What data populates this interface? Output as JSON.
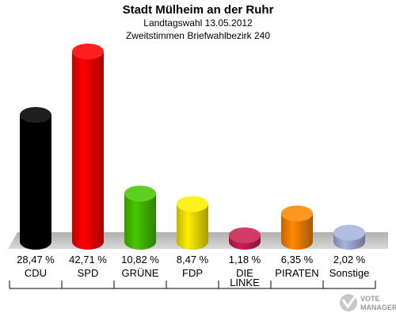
{
  "chart_data": {
    "type": "bar",
    "title": "Stadt Mülheim an der Ruhr",
    "subtitle_lines": [
      "Landtagswahl 13.05.2012",
      "Zweitstimmen Briefwahlbezirk 240"
    ],
    "categories": [
      "CDU",
      "SPD",
      "GRÜNE",
      "FDP",
      "DIE LINKE",
      "PIRATEN",
      "Sonstige"
    ],
    "category_label_lines": [
      [
        "CDU"
      ],
      [
        "SPD"
      ],
      [
        "GRÜNE"
      ],
      [
        "FDP"
      ],
      [
        "DIE",
        "LINKE"
      ],
      [
        "PIRATEN"
      ],
      [
        "Sonstige"
      ]
    ],
    "values": [
      28.47,
      42.71,
      10.82,
      8.47,
      1.18,
      6.35,
      2.02
    ],
    "value_labels": [
      "28,47 %",
      "42,71 %",
      "10,82 %",
      "8,47 %",
      "1,18 %",
      "6,35 %",
      "2,02 %"
    ],
    "colors": [
      "#000000",
      "#ff0000",
      "#46c800",
      "#ffee00",
      "#cc2050",
      "#ff8800",
      "#a8b4e0"
    ],
    "ylim": [
      0,
      42.71
    ],
    "grid": false,
    "legend": "none"
  },
  "watermark": {
    "line1": "VOTE",
    "line2": "MANAGER",
    "icon": "vote-manager-logo-icon"
  }
}
